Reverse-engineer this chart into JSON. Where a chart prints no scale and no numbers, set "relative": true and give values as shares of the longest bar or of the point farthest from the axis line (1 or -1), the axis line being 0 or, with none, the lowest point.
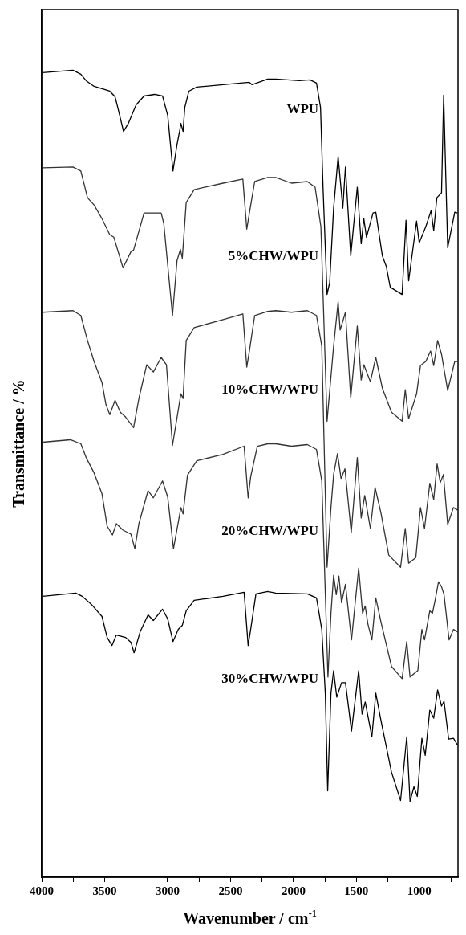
{
  "chart_data": {
    "type": "line",
    "xlabel": "Wavenumber / cm$^{-1}$",
    "ylabel": "Transmittance / %",
    "relative": true,
    "tick_labels": "x",
    "xlim": [
      4000,
      693
    ],
    "xticks": [
      4000,
      {
        "value": 3750,
        "label": null
      },
      3500,
      {
        "value": 3250,
        "label": null
      },
      3000,
      {
        "value": 2750,
        "label": null
      },
      2500,
      {
        "value": 2250,
        "label": null
      },
      2000,
      {
        "value": 1750,
        "label": null
      },
      1500,
      {
        "value": 1250,
        "label": null
      },
      1000,
      {
        "value": 750,
        "label": null
      }
    ],
    "series": [
      {
        "name": "WPU",
        "color": "#000000",
        "x": [
          3992,
          3752,
          3689,
          3647,
          3584,
          3459,
          3417,
          3396,
          3350,
          3312,
          3250,
          3187,
          3103,
          3040,
          2999,
          2957,
          2925,
          2905,
          2894,
          2877,
          2863,
          2831,
          2768,
          2559,
          2350,
          2329,
          2204,
          2141,
          1953,
          1869,
          1817,
          1785,
          1765,
          1733,
          1712,
          1681,
          1645,
          1608,
          1587,
          1545,
          1493,
          1462,
          1441,
          1420,
          1368,
          1346,
          1294,
          1263,
          1231,
          1137,
          1106,
          1085,
          1022,
          1001,
          949,
          907,
          886,
          861,
          824,
          807,
          775,
          719,
          698
        ],
        "values": [
          0.997,
          1.0,
          0.995,
          0.987,
          0.98,
          0.974,
          0.967,
          0.954,
          0.924,
          0.934,
          0.957,
          0.968,
          0.97,
          0.968,
          0.944,
          0.875,
          0.908,
          0.924,
          0.934,
          0.924,
          0.954,
          0.974,
          0.979,
          0.982,
          0.985,
          0.982,
          0.989,
          0.989,
          0.987,
          0.988,
          0.984,
          0.954,
          0.855,
          0.722,
          0.737,
          0.829,
          0.893,
          0.829,
          0.88,
          0.77,
          0.855,
          0.785,
          0.816,
          0.793,
          0.823,
          0.824,
          0.77,
          0.757,
          0.731,
          0.722,
          0.814,
          0.739,
          0.813,
          0.786,
          0.806,
          0.826,
          0.801,
          0.842,
          0.848,
          0.969,
          0.78,
          0.824,
          0.823
        ]
      },
      {
        "name": "5%CHW/WPU",
        "color": "#333333",
        "x": [
          3992,
          3752,
          3689,
          3636,
          3584,
          3521,
          3459,
          3427,
          3354,
          3291,
          3270,
          3187,
          3082,
          3051,
          3030,
          2961,
          2925,
          2898,
          2883,
          2852,
          2789,
          2559,
          2402,
          2371,
          2350,
          2308,
          2204,
          2141,
          2016,
          1890,
          1828,
          1782,
          1733,
          1681,
          1645,
          1629,
          1587,
          1545,
          1493,
          1462,
          1441,
          1389,
          1346,
          1294,
          1221,
          1137,
          1112,
          1085,
          1022,
          991,
          949,
          911,
          886,
          855,
          824,
          775,
          719,
          698
        ],
        "values": [
          0.879,
          0.88,
          0.875,
          0.842,
          0.833,
          0.816,
          0.796,
          0.793,
          0.755,
          0.775,
          0.777,
          0.823,
          0.823,
          0.823,
          0.81,
          0.696,
          0.764,
          0.778,
          0.767,
          0.836,
          0.852,
          0.86,
          0.865,
          0.803,
          0.823,
          0.862,
          0.867,
          0.867,
          0.86,
          0.862,
          0.855,
          0.806,
          0.565,
          0.658,
          0.713,
          0.678,
          0.7,
          0.594,
          0.683,
          0.616,
          0.635,
          0.614,
          0.644,
          0.606,
          0.576,
          0.565,
          0.604,
          0.568,
          0.599,
          0.634,
          0.639,
          0.652,
          0.634,
          0.665,
          0.648,
          0.603,
          0.639,
          0.639
        ]
      },
      {
        "name": "10%CHW/WPU",
        "color": "#333333",
        "x": [
          3992,
          3752,
          3689,
          3636,
          3584,
          3521,
          3490,
          3459,
          3417,
          3375,
          3333,
          3270,
          3228,
          3166,
          3113,
          3051,
          3009,
          2961,
          2894,
          2877,
          2852,
          2789,
          2559,
          2402,
          2371,
          2350,
          2308,
          2204,
          2141,
          2016,
          1890,
          1817,
          1775,
          1733,
          1702,
          1681,
          1650,
          1622,
          1591,
          1541,
          1493,
          1462,
          1434,
          1389,
          1352,
          1306,
          1243,
          1149,
          1112,
          1085,
          1028,
          991,
          959,
          917,
          886,
          859,
          834,
          809,
          775,
          729,
          698
        ],
        "values": [
          0.7,
          0.702,
          0.696,
          0.665,
          0.639,
          0.613,
          0.586,
          0.573,
          0.591,
          0.576,
          0.57,
          0.557,
          0.593,
          0.635,
          0.626,
          0.644,
          0.635,
          0.535,
          0.599,
          0.593,
          0.665,
          0.681,
          0.691,
          0.698,
          0.632,
          0.652,
          0.696,
          0.701,
          0.702,
          0.7,
          0.702,
          0.696,
          0.658,
          0.384,
          0.458,
          0.499,
          0.525,
          0.494,
          0.506,
          0.427,
          0.52,
          0.445,
          0.473,
          0.432,
          0.483,
          0.452,
          0.399,
          0.384,
          0.432,
          0.389,
          0.396,
          0.458,
          0.432,
          0.488,
          0.468,
          0.512,
          0.489,
          0.499,
          0.437,
          0.458,
          0.455
        ]
      },
      {
        "name": "20%CHW/WPU",
        "color": "#333333",
        "x": [
          3992,
          3772,
          3689,
          3647,
          3584,
          3521,
          3480,
          3438,
          3407,
          3354,
          3291,
          3260,
          3228,
          3155,
          3113,
          3040,
          2999,
          2953,
          2894,
          2877,
          2842,
          2768,
          2559,
          2392,
          2360,
          2340,
          2287,
          2204,
          2141,
          2016,
          1890,
          1817,
          1775,
          1726,
          1702,
          1681,
          1660,
          1639,
          1618,
          1587,
          1539,
          1482,
          1451,
          1430,
          1409,
          1377,
          1346,
          1306,
          1221,
          1137,
          1100,
          1074,
          1012,
          980,
          959,
          917,
          896,
          875,
          848,
          824,
          804,
          764,
          729,
          698
        ],
        "values": [
          0.539,
          0.542,
          0.537,
          0.52,
          0.501,
          0.475,
          0.435,
          0.424,
          0.438,
          0.43,
          0.425,
          0.407,
          0.438,
          0.479,
          0.47,
          0.491,
          0.471,
          0.407,
          0.458,
          0.45,
          0.498,
          0.516,
          0.524,
          0.534,
          0.47,
          0.496,
          0.534,
          0.537,
          0.537,
          0.534,
          0.536,
          0.53,
          0.491,
          0.248,
          0.327,
          0.374,
          0.35,
          0.373,
          0.34,
          0.363,
          0.294,
          0.383,
          0.327,
          0.336,
          0.314,
          0.294,
          0.346,
          0.317,
          0.261,
          0.246,
          0.292,
          0.248,
          0.256,
          0.307,
          0.294,
          0.33,
          0.327,
          0.343,
          0.366,
          0.36,
          0.35,
          0.294,
          0.307,
          0.304
        ]
      },
      {
        "name": "30%CHW/WPU",
        "color": "#000000",
        "x": [
          3992,
          3730,
          3678,
          3605,
          3521,
          3480,
          3442,
          3407,
          3333,
          3291,
          3266,
          3218,
          3155,
          3113,
          3040,
          2999,
          2957,
          2915,
          2883,
          2852,
          2789,
          2559,
          2392,
          2360,
          2340,
          2298,
          2204,
          2141,
          1890,
          1817,
          1775,
          1747,
          1728,
          1702,
          1681,
          1656,
          1618,
          1587,
          1539,
          1482,
          1455,
          1430,
          1377,
          1346,
          1306,
          1221,
          1149,
          1100,
          1074,
          1043,
          1016,
          980,
          953,
          917,
          886,
          855,
          824,
          804,
          767,
          729,
          698
        ],
        "values": [
          0.348,
          0.352,
          0.348,
          0.338,
          0.323,
          0.297,
          0.287,
          0.3,
          0.297,
          0.291,
          0.278,
          0.304,
          0.325,
          0.318,
          0.332,
          0.32,
          0.292,
          0.307,
          0.312,
          0.33,
          0.343,
          0.348,
          0.353,
          0.287,
          0.307,
          0.351,
          0.354,
          0.352,
          0.351,
          0.346,
          0.307,
          0.228,
          0.107,
          0.228,
          0.256,
          0.223,
          0.241,
          0.241,
          0.181,
          0.256,
          0.202,
          0.217,
          0.174,
          0.228,
          0.195,
          0.13,
          0.095,
          0.174,
          0.094,
          0.112,
          0.1,
          0.172,
          0.151,
          0.207,
          0.197,
          0.232,
          0.212,
          0.218,
          0.171,
          0.172,
          0.164
        ]
      }
    ]
  }
}
